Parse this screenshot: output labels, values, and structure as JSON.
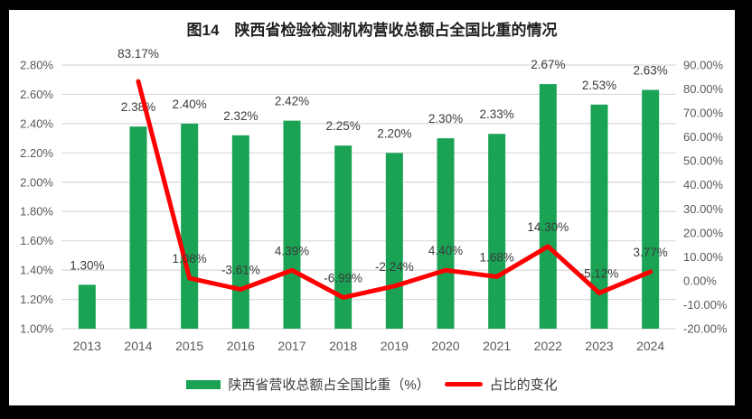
{
  "title": "图14　陕西省检验检测机构营收总额占全国比重的情况",
  "colors": {
    "bar": "#1aa355",
    "line": "#fe0000",
    "gridline": "#d9d9d9",
    "axis_text": "#595959",
    "data_label": "#3b3b3b",
    "frame": "#000000",
    "background": "#ffffff"
  },
  "chart_data": {
    "type": "combo-bar-line",
    "title": "图14　陕西省检验检测机构营收总额占全国比重的情况",
    "categories": [
      "2013",
      "2014",
      "2015",
      "2016",
      "2017",
      "2018",
      "2019",
      "2020",
      "2021",
      "2022",
      "2023",
      "2024"
    ],
    "series": [
      {
        "name": "陕西省营收总额占全国比重（%）",
        "type": "bar",
        "axis": "left",
        "color": "#1aa355",
        "values": [
          1.3,
          2.38,
          2.4,
          2.32,
          2.42,
          2.25,
          2.2,
          2.3,
          2.33,
          2.67,
          2.53,
          2.63
        ],
        "labels": [
          "1.30%",
          "2.38%",
          "2.40%",
          "2.32%",
          "2.42%",
          "2.25%",
          "2.20%",
          "2.30%",
          "2.33%",
          "2.67%",
          "2.53%",
          "2.63%"
        ]
      },
      {
        "name": "占比的变化",
        "type": "line",
        "axis": "right",
        "color": "#fe0000",
        "values": [
          null,
          83.17,
          1.08,
          -3.61,
          4.39,
          -6.99,
          -2.24,
          4.4,
          1.68,
          14.3,
          -5.12,
          3.77
        ],
        "labels": [
          null,
          "83.17%",
          "1.08%",
          "-3.61%",
          "4.39%",
          "-6.99%",
          "-2.24%",
          "4.40%",
          "1.68%",
          "14.30%",
          "-5.12%",
          "3.77%"
        ]
      }
    ],
    "left_axis": {
      "min": 1.0,
      "max": 2.8,
      "step": 0.2,
      "ticks": [
        "2.80%",
        "2.60%",
        "2.40%",
        "2.20%",
        "2.00%",
        "1.80%",
        "1.60%",
        "1.40%",
        "1.20%",
        "1.00%"
      ]
    },
    "right_axis": {
      "min": -20,
      "max": 90,
      "step": 10,
      "ticks": [
        "90.00%",
        "80.00%",
        "70.00%",
        "60.00%",
        "50.00%",
        "40.00%",
        "30.00%",
        "20.00%",
        "10.00%",
        "0.00%",
        "-10.00%",
        "-20.00%"
      ]
    },
    "grid": true,
    "legend_position": "bottom"
  }
}
